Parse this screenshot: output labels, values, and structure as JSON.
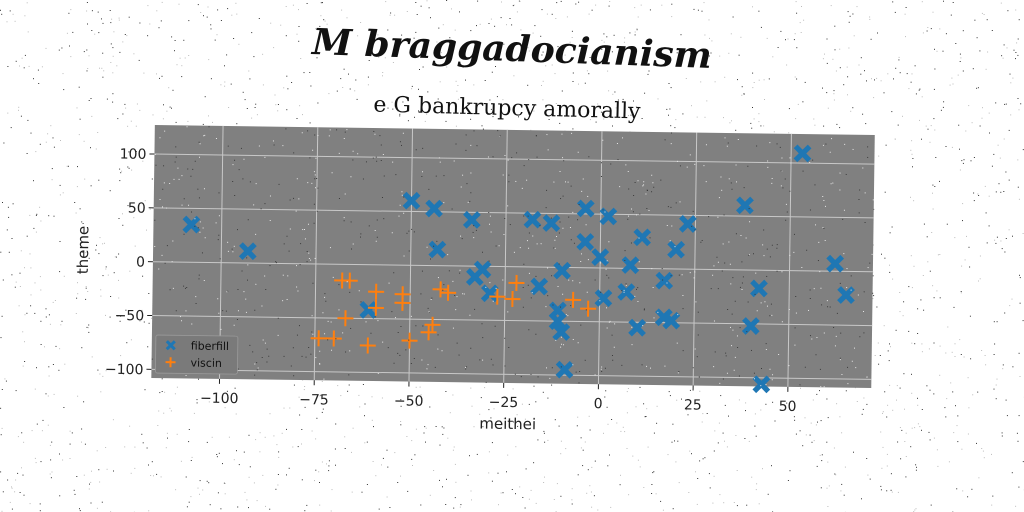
{
  "figure": {
    "title": "M braggadocianism",
    "subtitle": "e G bankrupcy amorally"
  },
  "colors": {
    "plot_background": "#808080",
    "grid": "#c8c8c8",
    "fiberfill": "#1f77b4",
    "viscin": "#ff7f0e"
  },
  "chart_data": {
    "type": "scatter",
    "title": "e G bankrupcy amorally",
    "xlabel": "meithei",
    "ylabel": "theme",
    "xlim": [
      -118,
      72
    ],
    "ylim": [
      -108,
      127
    ],
    "xticks": [
      -100,
      -75,
      -50,
      -25,
      0,
      25,
      50
    ],
    "xtick_labels": [
      "−100",
      "−75",
      "−50",
      "−25",
      "0",
      "25",
      "50"
    ],
    "yticks": [
      -100,
      -50,
      0,
      50,
      100
    ],
    "ytick_labels": [
      "−100",
      "−50",
      "0",
      "50",
      "100"
    ],
    "grid": true,
    "legend_position": "lower-left",
    "series": [
      {
        "name": "fiberfill",
        "marker": "x",
        "points": [
          [
            -108,
            35
          ],
          [
            -93,
            11
          ],
          [
            -50,
            60
          ],
          [
            -44,
            53
          ],
          [
            -43,
            15
          ],
          [
            -61,
            -42
          ],
          [
            -34,
            43
          ],
          [
            -33,
            -10
          ],
          [
            -31,
            -3
          ],
          [
            -29,
            -25
          ],
          [
            -18,
            44
          ],
          [
            -13,
            41
          ],
          [
            -16,
            -18
          ],
          [
            -10,
            -3
          ],
          [
            -11,
            -40
          ],
          [
            -11,
            -50
          ],
          [
            -10,
            -60
          ],
          [
            -9,
            -95
          ],
          [
            -4,
            55
          ],
          [
            -4,
            24
          ],
          [
            0,
            10
          ],
          [
            2,
            48
          ],
          [
            1,
            -28
          ],
          [
            8,
            3
          ],
          [
            7,
            -22
          ],
          [
            11,
            29
          ],
          [
            10,
            -55
          ],
          [
            17,
            -11
          ],
          [
            17,
            -45
          ],
          [
            19,
            -48
          ],
          [
            20,
            18
          ],
          [
            23,
            42
          ],
          [
            38,
            60
          ],
          [
            40,
            -52
          ],
          [
            42,
            -17
          ],
          [
            43,
            -106
          ],
          [
            53,
            109
          ],
          [
            62,
            7
          ],
          [
            65,
            -22
          ]
        ]
      },
      {
        "name": "viscin",
        "marker": "+",
        "points": [
          [
            -74,
            -69
          ],
          [
            -70,
            -69
          ],
          [
            -68,
            -15
          ],
          [
            -66,
            -15
          ],
          [
            -67,
            -50
          ],
          [
            -61,
            -75
          ],
          [
            -59,
            -25
          ],
          [
            -59,
            -40
          ],
          [
            -52,
            -27
          ],
          [
            -52,
            -35
          ],
          [
            -50,
            -70
          ],
          [
            -45,
            -62
          ],
          [
            -44,
            -55
          ],
          [
            -42,
            -22
          ],
          [
            -40,
            -25
          ],
          [
            -27,
            -28
          ],
          [
            -23,
            -30
          ],
          [
            -22,
            -15
          ],
          [
            -7,
            -30
          ],
          [
            -3,
            -38
          ]
        ]
      }
    ]
  }
}
